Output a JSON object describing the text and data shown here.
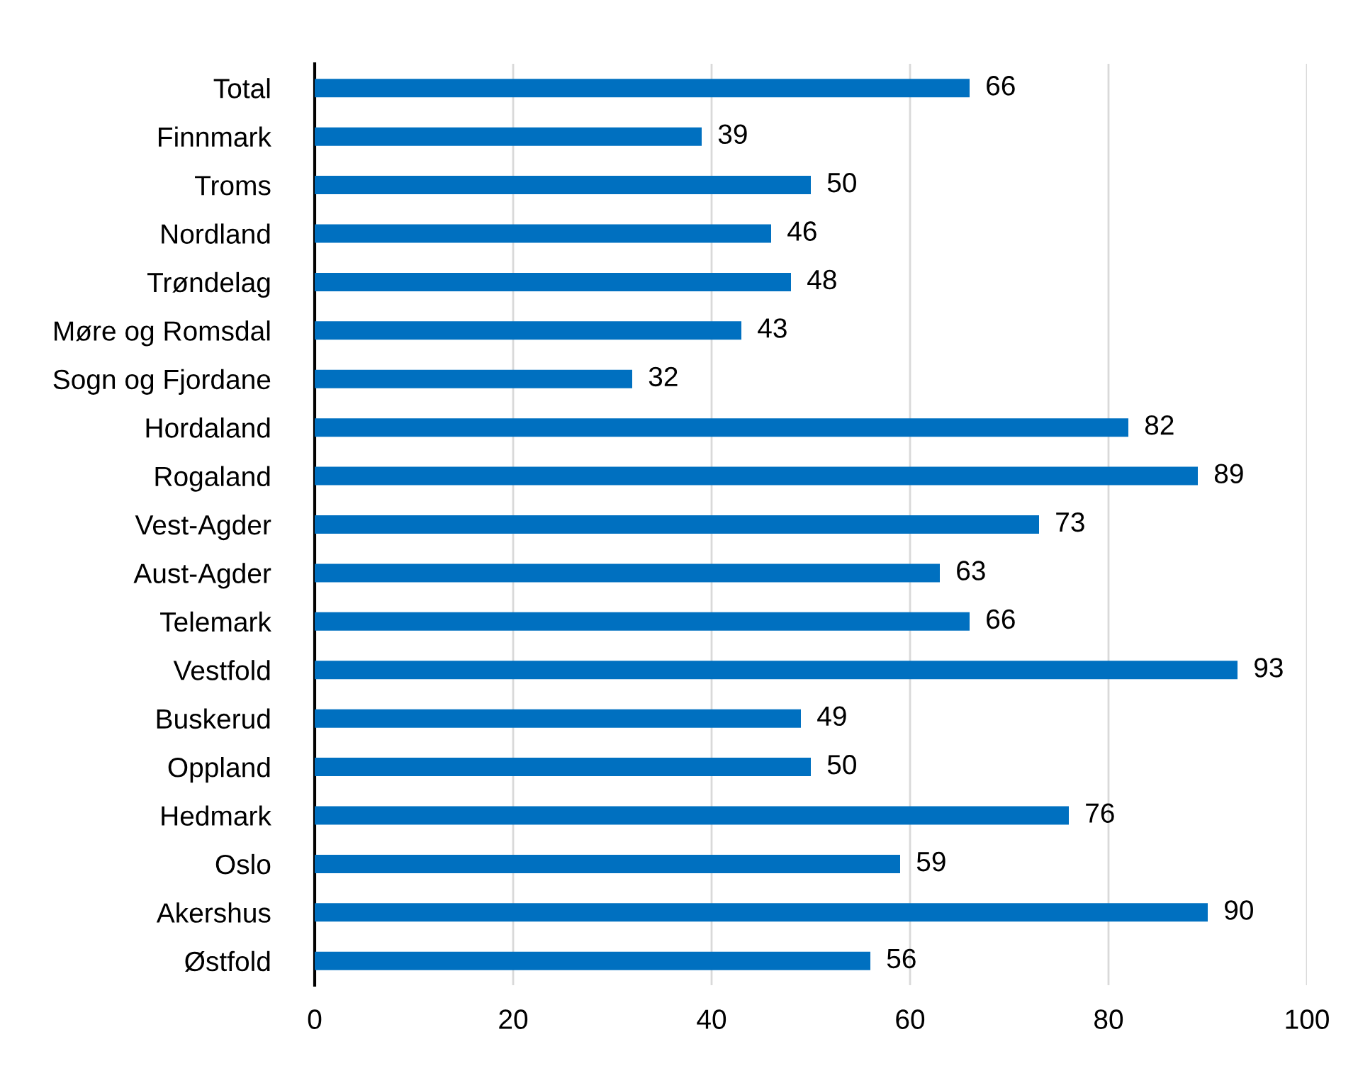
{
  "chart_data": {
    "type": "bar",
    "orientation": "horizontal",
    "categories": [
      "Total",
      "Finnmark",
      "Troms",
      "Nordland",
      "Trøndelag",
      "Møre og Romsdal",
      "Sogn og Fjordane",
      "Hordaland",
      "Rogaland",
      "Vest-Agder",
      "Aust-Agder",
      "Telemark",
      "Vestfold",
      "Buskerud",
      "Oppland",
      "Hedmark",
      "Oslo",
      "Akershus",
      "Østfold"
    ],
    "values": [
      66,
      39,
      50,
      46,
      48,
      43,
      32,
      82,
      89,
      73,
      63,
      66,
      93,
      49,
      50,
      76,
      59,
      90,
      56
    ],
    "color": "#0070c0",
    "xlim": [
      0,
      100
    ],
    "xticks": [
      0,
      20,
      40,
      60,
      80,
      100
    ],
    "grid": "x",
    "data_labels": true
  }
}
